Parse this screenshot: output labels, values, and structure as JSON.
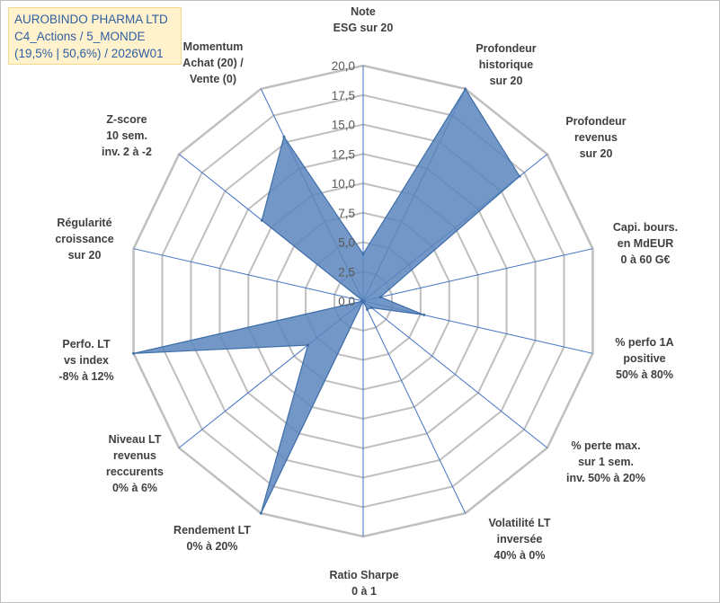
{
  "title": {
    "lines": [
      "AUROBINDO PHARMA LTD",
      "C4_Actions / 5_MONDE",
      "(19,5% | 50,6%) / 2026W01"
    ]
  },
  "colors": {
    "fill": "#5a86bd",
    "stroke": "#3f6ea8",
    "grid": "#bfbfbf",
    "spoke": "#4472c4",
    "title_bg": "#fff2cc"
  },
  "chart_data": {
    "type": "radar",
    "rmin": 0,
    "rmax": 20,
    "tick_step": 2.5,
    "tick_labels": [
      "0,0",
      "2,5",
      "5,0",
      "7,5",
      "10,0",
      "12,5",
      "15,0",
      "17,5",
      "20,0"
    ],
    "axes": [
      {
        "label_lines": [
          "Note",
          "ESG sur 20"
        ],
        "value": 4
      },
      {
        "label_lines": [
          "Profondeur",
          "historique",
          "sur 20"
        ],
        "value": 20
      },
      {
        "label_lines": [
          "Profondeur",
          "revenus",
          "sur 20"
        ],
        "value": 17
      },
      {
        "label_lines": [
          "Capi. bours.",
          "en MdEUR",
          "0 à 60 G€"
        ],
        "value": 1.5
      },
      {
        "label_lines": [
          "% perfo 1A",
          "positive",
          "50% à 80%"
        ],
        "value": 5.3
      },
      {
        "label_lines": [
          "% perte max.",
          "sur 1 sem.",
          "inv. 50% à 20%"
        ],
        "value": 0.9
      },
      {
        "label_lines": [
          "Volatilité LT",
          "inversée",
          "40% à 0%"
        ],
        "value": 0.8
      },
      {
        "label_lines": [
          "Ratio Sharpe",
          "0 à 1"
        ],
        "value": 0
      },
      {
        "label_lines": [
          "Rendement LT",
          "0% à 20%"
        ],
        "value": 20
      },
      {
        "label_lines": [
          "Niveau LT",
          "revenus",
          "reccurents",
          "0% à 6%"
        ],
        "value": 6
      },
      {
        "label_lines": [
          "Perfo. LT",
          "vs index",
          "-8% à 12%"
        ],
        "value": 20
      },
      {
        "label_lines": [
          "Régularité",
          "croissance",
          "sur 20"
        ],
        "value": 0
      },
      {
        "label_lines": [
          "Z-score",
          "10 sem.",
          "inv. 2 à -2"
        ],
        "value": 11
      },
      {
        "label_lines": [
          "Momentum",
          "Achat (20) /",
          "Vente (0)"
        ],
        "value": 15.5
      }
    ]
  }
}
